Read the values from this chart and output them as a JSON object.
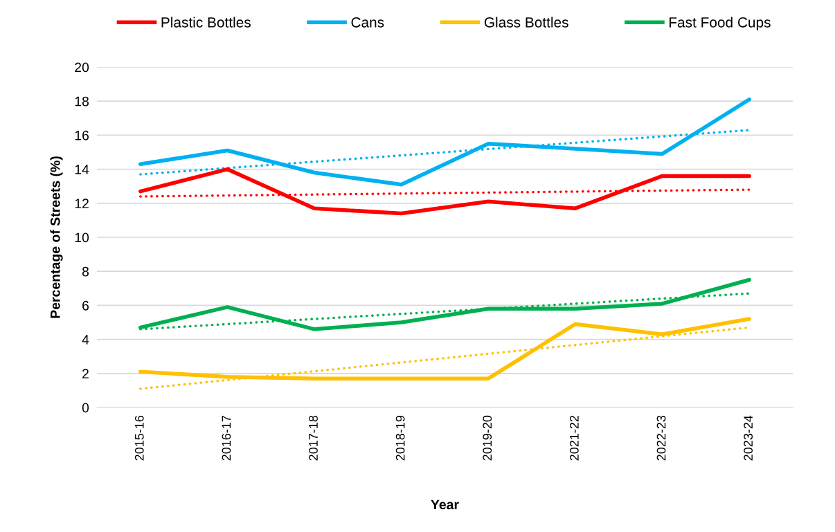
{
  "chart_data": {
    "type": "line",
    "xlabel": "Year",
    "ylabel": "Percentage of Streets (%)",
    "categories": [
      "2015-16",
      "2016-17",
      "2017-18",
      "2018-19",
      "2019-20",
      "2021-22",
      "2022-23",
      "2023-24"
    ],
    "series": [
      {
        "name": "Plastic Bottles",
        "color": "#ff0000",
        "values": [
          12.7,
          14.0,
          11.7,
          11.4,
          12.1,
          11.7,
          13.6,
          13.6
        ]
      },
      {
        "name": "Cans",
        "color": "#00b0f0",
        "values": [
          14.3,
          15.1,
          13.8,
          13.1,
          15.5,
          15.2,
          14.9,
          18.1
        ]
      },
      {
        "name": "Glass Bottles",
        "color": "#ffc000",
        "values": [
          2.1,
          1.8,
          1.7,
          1.7,
          1.7,
          4.9,
          4.3,
          5.2
        ]
      },
      {
        "name": "Fast Food Cups",
        "color": "#00b050",
        "values": [
          4.7,
          5.9,
          4.6,
          5.0,
          5.8,
          5.8,
          6.1,
          7.5
        ]
      },
      {
        "color": "#ff0000",
        "line_style": "dotted",
        "x": [
          "2015-16",
          "2023-24"
        ],
        "values": [
          12.4,
          12.8
        ]
      },
      {
        "color": "#00b0f0",
        "line_style": "dotted",
        "x": [
          "2015-16",
          "2023-24"
        ],
        "values": [
          13.7,
          16.3
        ]
      },
      {
        "color": "#ffc000",
        "line_style": "dotted",
        "x": [
          "2015-16",
          "2023-24"
        ],
        "values": [
          1.1,
          4.7
        ]
      },
      {
        "color": "#00b050",
        "line_style": "dotted",
        "x": [
          "2015-16",
          "2023-24"
        ],
        "values": [
          4.6,
          6.7
        ]
      }
    ],
    "ylim": [
      0,
      20
    ],
    "yticks": [
      0,
      2,
      4,
      6,
      8,
      10,
      12,
      14,
      16,
      18,
      20
    ],
    "grid": "y",
    "legend": "top",
    "line_style": "solid",
    "marker": "none"
  }
}
